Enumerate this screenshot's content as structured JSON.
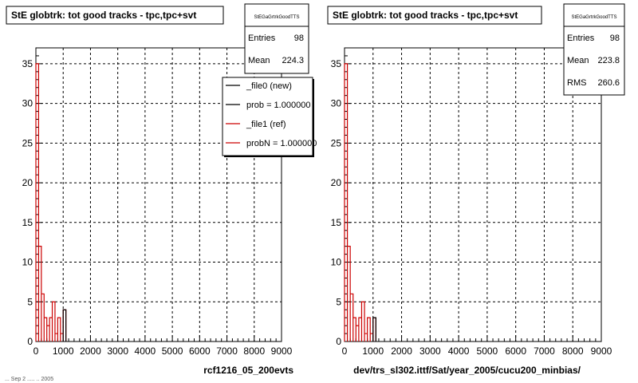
{
  "footer": {
    "left_caption": "rcf1216_05_200evts",
    "right_caption": "dev/trs_sl302.ittf/Sat/year_2005/cucu200_minbias/",
    "corner_text": "... Sep 2 ..... .. 2005"
  },
  "chart_data": [
    {
      "type": "histogram",
      "title": "StE globtrk: tot good tracks - tpc,tpc+svt",
      "xlim": [
        0,
        9000
      ],
      "ylim": [
        0,
        37
      ],
      "x_ticks": [
        0,
        1000,
        2000,
        3000,
        4000,
        5000,
        6000,
        7000,
        8000,
        9000
      ],
      "y_ticks": [
        0,
        5,
        10,
        15,
        20,
        25,
        30,
        35
      ],
      "grid": true,
      "stats_box": {
        "title": "StEGaGrtrkGoodTTS",
        "rows": [
          {
            "label": "Entries",
            "value": "98"
          },
          {
            "label": "Mean",
            "value": "224.3"
          }
        ]
      },
      "legend": {
        "placement": "top-right",
        "entries": [
          {
            "label": "_file0 (new)",
            "color": "#000000"
          },
          {
            "label": "prob = 1.000000",
            "color": "#000000"
          },
          {
            "label": "_file1 (ref)",
            "color": "#cc0000"
          },
          {
            "label": "probN = 1.000000",
            "color": "#cc0000"
          }
        ]
      },
      "bin_width": 100,
      "series": [
        {
          "color": "#cc0000",
          "bins": [
            [
              0,
              35
            ],
            [
              100,
              12
            ],
            [
              200,
              6
            ],
            [
              300,
              3
            ],
            [
              400,
              2
            ],
            [
              500,
              3
            ],
            [
              600,
              5
            ],
            [
              700,
              1
            ],
            [
              800,
              3
            ],
            [
              900,
              1
            ],
            [
              1000,
              4
            ]
          ]
        },
        {
          "color": "#000000",
          "bins": [
            [
              1000,
              4
            ]
          ]
        }
      ]
    },
    {
      "type": "histogram",
      "title": "StE globtrk: tot good tracks - tpc,tpc+svt",
      "xlim": [
        0,
        9000
      ],
      "ylim": [
        0,
        37
      ],
      "x_ticks": [
        0,
        1000,
        2000,
        3000,
        4000,
        5000,
        6000,
        7000,
        8000,
        9000
      ],
      "y_ticks": [
        0,
        5,
        10,
        15,
        20,
        25,
        30,
        35
      ],
      "grid": true,
      "stats_box": {
        "title": "StEGaGrtrkGoodTTS",
        "rows": [
          {
            "label": "Entries",
            "value": "98"
          },
          {
            "label": "Mean",
            "value": "223.8"
          },
          {
            "label": "RMS",
            "value": "260.6"
          }
        ]
      },
      "bin_width": 100,
      "series": [
        {
          "color": "#cc0000",
          "bins": [
            [
              0,
              35
            ],
            [
              100,
              12
            ],
            [
              200,
              6
            ],
            [
              300,
              3
            ],
            [
              400,
              2
            ],
            [
              500,
              3
            ],
            [
              600,
              5
            ],
            [
              700,
              1
            ],
            [
              800,
              3
            ],
            [
              900,
              1
            ],
            [
              1000,
              3
            ]
          ]
        },
        {
          "color": "#000000",
          "bins": [
            [
              1000,
              3
            ]
          ]
        }
      ]
    }
  ]
}
